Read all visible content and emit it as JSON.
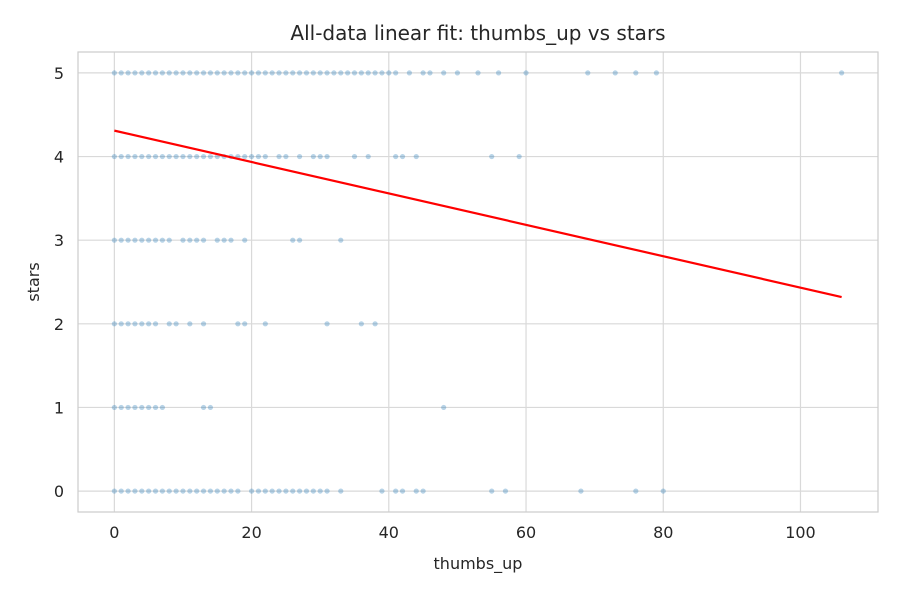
{
  "chart_data": {
    "type": "scatter",
    "title": "All-data linear fit: thumbs_up vs stars",
    "xlabel": "thumbs_up",
    "ylabel": "stars",
    "xlim": [
      -5.3,
      111.3
    ],
    "ylim": [
      -0.25,
      5.25
    ],
    "xticks": [
      0,
      20,
      40,
      60,
      80,
      100
    ],
    "yticks": [
      0,
      1,
      2,
      3,
      4,
      5
    ],
    "grid": true,
    "colors": {
      "points": "#1f77b4",
      "fit_line": "#ff0000",
      "grid": "#d9d9d9",
      "spine": "#cccccc"
    },
    "series": [
      {
        "x": [
          0,
          1,
          2,
          3,
          4,
          5,
          6,
          7,
          8,
          9,
          10,
          11,
          12,
          13,
          14,
          15,
          16,
          17,
          18,
          19,
          20,
          21,
          22,
          23,
          24,
          25,
          26,
          27,
          28,
          29,
          30,
          31,
          32,
          33,
          34,
          35,
          36,
          37,
          38,
          39,
          40,
          41,
          43,
          45,
          46,
          48,
          50,
          53,
          56,
          60,
          69,
          73,
          76,
          79,
          106,
          0,
          1,
          2,
          3,
          4,
          5,
          6,
          7,
          8,
          9,
          10,
          11,
          12,
          13,
          14,
          15,
          16,
          17,
          18,
          19,
          20,
          21,
          22,
          24,
          25,
          27,
          29,
          30,
          31,
          35,
          37,
          41,
          42,
          44,
          55,
          59,
          0,
          1,
          2,
          3,
          4,
          5,
          6,
          7,
          8,
          10,
          11,
          12,
          13,
          15,
          16,
          17,
          19,
          26,
          27,
          33,
          0,
          1,
          2,
          3,
          4,
          5,
          6,
          8,
          9,
          11,
          13,
          18,
          19,
          22,
          31,
          36,
          38,
          0,
          1,
          2,
          3,
          4,
          5,
          6,
          7,
          13,
          14,
          48,
          0,
          1,
          2,
          3,
          4,
          5,
          6,
          7,
          8,
          9,
          10,
          11,
          12,
          13,
          14,
          15,
          16,
          17,
          18,
          20,
          21,
          22,
          23,
          24,
          25,
          26,
          27,
          28,
          29,
          30,
          31,
          33,
          39,
          41,
          42,
          44,
          45,
          55,
          57,
          68,
          76,
          80
        ],
        "y": [
          5,
          5,
          5,
          5,
          5,
          5,
          5,
          5,
          5,
          5,
          5,
          5,
          5,
          5,
          5,
          5,
          5,
          5,
          5,
          5,
          5,
          5,
          5,
          5,
          5,
          5,
          5,
          5,
          5,
          5,
          5,
          5,
          5,
          5,
          5,
          5,
          5,
          5,
          5,
          5,
          5,
          5,
          5,
          5,
          5,
          5,
          5,
          5,
          5,
          5,
          5,
          5,
          5,
          5,
          5,
          4,
          4,
          4,
          4,
          4,
          4,
          4,
          4,
          4,
          4,
          4,
          4,
          4,
          4,
          4,
          4,
          4,
          4,
          4,
          4,
          4,
          4,
          4,
          4,
          4,
          4,
          4,
          4,
          4,
          4,
          4,
          4,
          4,
          4,
          4,
          4,
          3,
          3,
          3,
          3,
          3,
          3,
          3,
          3,
          3,
          3,
          3,
          3,
          3,
          3,
          3,
          3,
          3,
          3,
          3,
          3,
          2,
          2,
          2,
          2,
          2,
          2,
          2,
          2,
          2,
          2,
          2,
          2,
          2,
          2,
          2,
          2,
          2,
          1,
          1,
          1,
          1,
          1,
          1,
          1,
          1,
          1,
          1,
          1,
          0,
          0,
          0,
          0,
          0,
          0,
          0,
          0,
          0,
          0,
          0,
          0,
          0,
          0,
          0,
          0,
          0,
          0,
          0,
          0,
          0,
          0,
          0,
          0,
          0,
          0,
          0,
          0,
          0,
          0,
          0,
          0,
          0,
          0,
          0,
          0,
          0,
          0,
          0,
          0,
          0,
          0
        ]
      }
    ],
    "fit_line": {
      "x": [
        0,
        106
      ],
      "y": [
        4.31,
        2.32
      ]
    }
  }
}
